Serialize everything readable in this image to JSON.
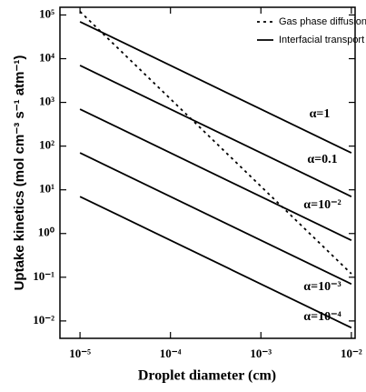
{
  "chart_data": {
    "type": "line",
    "x_label": "Droplet diameter (cm)",
    "y_label": "Uptake kinetics (mol cm⁻³ s⁻¹ atm⁻¹)",
    "log_x": true,
    "log_y": true,
    "xlim": [
      6e-06,
      0.011
    ],
    "ylim": [
      0.004,
      150000
    ],
    "xticks": [
      {
        "value": 1e-05,
        "label": "10⁻⁵"
      },
      {
        "value": 0.0001,
        "label": "10⁻⁴"
      },
      {
        "value": 0.001,
        "label": "10⁻³"
      },
      {
        "value": 0.01,
        "label": "10⁻²"
      }
    ],
    "yticks": [
      {
        "value": 0.01,
        "label": "10⁻²"
      },
      {
        "value": 0.1,
        "label": "10⁻¹"
      },
      {
        "value": 1,
        "label": "10⁰"
      },
      {
        "value": 10,
        "label": "10¹"
      },
      {
        "value": 100,
        "label": "10²"
      },
      {
        "value": 1000,
        "label": "10³"
      },
      {
        "value": 10000,
        "label": "10⁴"
      },
      {
        "value": 100000,
        "label": "10⁵"
      }
    ],
    "legend": "top-right",
    "x": [
      1e-05,
      0.01
    ],
    "series": [
      {
        "name": "Gas phase diffusion",
        "color": "#000000",
        "style": "dotted",
        "values": [
          120000,
          0.12
        ]
      },
      {
        "name": "Interfacial transport",
        "color": "#000000",
        "style": "solid",
        "lines": [
          {
            "label": "α=1",
            "values": [
              70000,
              70
            ]
          },
          {
            "label": "α=0.1",
            "values": [
              7000,
              7
            ]
          },
          {
            "label": "α=10⁻²",
            "values": [
              700,
              0.7
            ]
          },
          {
            "label": "α=10⁻³",
            "values": [
              70,
              0.07
            ]
          },
          {
            "label": "α=10⁻⁴",
            "values": [
              7,
              0.007
            ]
          }
        ]
      }
    ]
  }
}
